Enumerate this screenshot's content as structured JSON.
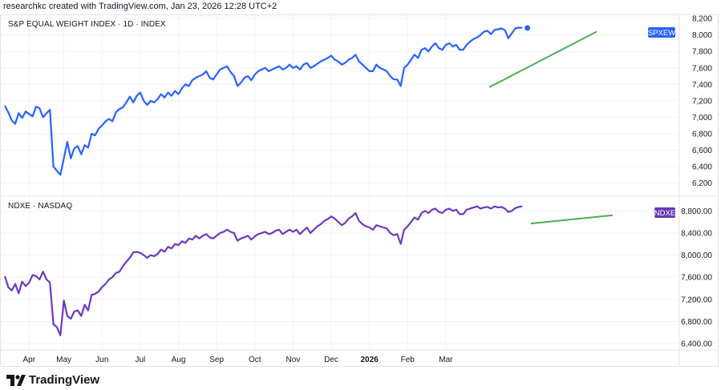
{
  "header": {
    "text": "researchkc created with TradingView.com, Jan 23, 2026 12:28 UTC+2"
  },
  "footer": {
    "brand": "TradingView"
  },
  "colors": {
    "spx_line": "#2962ff",
    "ndx_line": "#6b3ac2",
    "trend": "#4caf50",
    "spx_badge": "#2962ff",
    "ndx_badge": "#673ab7",
    "grid": "#f0f3fa",
    "axis_text": "#131722"
  },
  "x_axis": {
    "labels": [
      "Apr",
      "May",
      "Jun",
      "Jul",
      "Aug",
      "Sep",
      "Oct",
      "Nov",
      "Dec",
      "2026",
      "Feb",
      "Mar"
    ],
    "bold_label": "2026"
  },
  "chart_data": [
    {
      "type": "line",
      "title": "S&P EQUAL WEIGHT INDEX · 1D · INDEX",
      "badge": "SPXEW",
      "ylim": [
        6050,
        8250
      ],
      "yticks": [
        6200,
        6400,
        6600,
        6800,
        7000,
        7200,
        7400,
        7600,
        7800,
        8000,
        8200
      ],
      "ytick_labels": [
        "6,200",
        "6,400",
        "6,600",
        "6,800",
        "7,000",
        "7,200",
        "7,400",
        "7,600",
        "7,800",
        "8,000",
        "8,200"
      ],
      "last_value": 8085,
      "x": [
        0,
        2,
        4,
        6,
        8,
        10,
        12,
        14,
        16,
        18,
        20,
        22,
        24,
        26,
        28,
        30,
        32,
        34,
        36,
        38,
        40,
        42,
        44,
        46,
        48,
        50,
        52,
        54,
        56,
        58,
        60,
        62,
        64,
        66,
        68,
        70,
        72,
        74,
        76,
        78,
        80,
        82,
        84,
        86,
        88,
        90,
        92,
        94,
        96,
        98,
        100,
        102,
        104,
        106,
        108,
        110,
        112,
        114,
        116,
        118,
        120,
        122,
        124,
        126,
        128,
        130,
        132,
        134,
        136,
        138,
        140,
        142,
        144,
        146,
        148,
        150,
        152,
        154,
        156,
        158,
        160,
        162,
        164,
        166,
        168,
        170,
        172,
        174,
        176,
        178,
        180,
        182,
        184,
        186,
        188,
        190,
        192,
        194,
        196,
        198,
        200,
        202,
        204,
        206,
        208,
        210,
        212,
        214,
        216,
        218,
        220,
        222,
        224,
        226,
        228,
        230,
        232,
        234,
        236,
        238,
        240,
        242,
        244,
        246,
        248,
        250,
        252,
        254,
        256,
        258,
        260,
        262,
        264,
        266,
        268,
        270,
        272,
        274,
        276,
        278,
        280,
        282,
        284,
        286,
        288,
        290,
        292,
        294,
        296,
        298
      ],
      "values": [
        7140,
        7060,
        6960,
        6920,
        7050,
        6990,
        7070,
        7040,
        7010,
        7130,
        7110,
        7000,
        7050,
        7090,
        6400,
        6350,
        6300,
        6500,
        6700,
        6500,
        6620,
        6650,
        6550,
        6660,
        6630,
        6800,
        6780,
        6860,
        6900,
        6950,
        6980,
        6950,
        7060,
        7100,
        7120,
        7180,
        7250,
        7180,
        7260,
        7300,
        7200,
        7150,
        7200,
        7180,
        7220,
        7280,
        7240,
        7300,
        7260,
        7320,
        7280,
        7350,
        7400,
        7380,
        7450,
        7480,
        7500,
        7520,
        7560,
        7480,
        7460,
        7520,
        7580,
        7600,
        7620,
        7550,
        7500,
        7380,
        7420,
        7480,
        7500,
        7450,
        7520,
        7560,
        7580,
        7600,
        7560,
        7580,
        7600,
        7620,
        7580,
        7600,
        7640,
        7600,
        7620,
        7580,
        7640,
        7660,
        7600,
        7620,
        7650,
        7680,
        7700,
        7720,
        7750,
        7700,
        7680,
        7640,
        7660,
        7700,
        7720,
        7760,
        7680,
        7640,
        7600,
        7560,
        7560,
        7640,
        7600,
        7580,
        7560,
        7500,
        7460,
        7460,
        7380,
        7600,
        7640,
        7700,
        7760,
        7720,
        7820,
        7840,
        7800,
        7860,
        7900,
        7840,
        7820,
        7880,
        7900,
        7860,
        7880,
        7820,
        7820,
        7880,
        7920,
        7950,
        7970,
        8000,
        8040,
        8050,
        8010,
        8060,
        8070,
        8080,
        8060,
        7960,
        8020,
        8080,
        8090,
        8085
      ],
      "trend": {
        "x": [
          279,
          341
        ],
        "values": [
          7365,
          8042
        ]
      }
    },
    {
      "type": "line",
      "title": "NDXE · NASDAQ",
      "badge": "NDXE",
      "ylim": [
        6300,
        9050
      ],
      "yticks": [
        6400,
        6800,
        7200,
        7600,
        8000,
        8400,
        8800
      ],
      "ytick_labels": [
        "6,400.00",
        "6,800.00",
        "7,200.00",
        "7,600.00",
        "8,000.00",
        "8,400.00",
        "8,800.00"
      ],
      "last_value": 8880,
      "x": [
        0,
        2,
        4,
        6,
        8,
        10,
        12,
        14,
        16,
        18,
        20,
        22,
        24,
        26,
        28,
        30,
        32,
        34,
        36,
        38,
        40,
        42,
        44,
        46,
        48,
        50,
        52,
        54,
        56,
        58,
        60,
        62,
        64,
        66,
        68,
        70,
        72,
        74,
        76,
        78,
        80,
        82,
        84,
        86,
        88,
        90,
        92,
        94,
        96,
        98,
        100,
        102,
        104,
        106,
        108,
        110,
        112,
        114,
        116,
        118,
        120,
        122,
        124,
        126,
        128,
        130,
        132,
        134,
        136,
        138,
        140,
        142,
        144,
        146,
        148,
        150,
        152,
        154,
        156,
        158,
        160,
        162,
        164,
        166,
        168,
        170,
        172,
        174,
        176,
        178,
        180,
        182,
        184,
        186,
        188,
        190,
        192,
        194,
        196,
        198,
        200,
        202,
        204,
        206,
        208,
        210,
        212,
        214,
        216,
        218,
        220,
        222,
        224,
        226,
        228,
        230,
        232,
        234,
        236,
        238,
        240,
        242,
        244,
        246,
        248,
        250,
        252,
        254,
        256,
        258,
        260,
        262,
        264,
        266,
        268,
        270,
        272,
        274,
        276,
        278,
        280,
        282,
        284,
        286,
        288,
        290,
        292,
        294,
        296,
        298
      ],
      "values": [
        7620,
        7420,
        7360,
        7480,
        7310,
        7520,
        7440,
        7500,
        7640,
        7620,
        7560,
        7700,
        7560,
        7500,
        6750,
        6700,
        6550,
        7180,
        6900,
        6850,
        6980,
        7000,
        6900,
        7100,
        7000,
        7280,
        7300,
        7340,
        7420,
        7480,
        7560,
        7600,
        7680,
        7700,
        7800,
        7880,
        7950,
        8050,
        8060,
        8040,
        8000,
        7950,
        8000,
        7980,
        8020,
        8100,
        8060,
        8150,
        8120,
        8200,
        8180,
        8250,
        8220,
        8300,
        8280,
        8350,
        8300,
        8350,
        8380,
        8320,
        8300,
        8350,
        8400,
        8420,
        8460,
        8420,
        8400,
        8260,
        8300,
        8320,
        8350,
        8280,
        8340,
        8380,
        8400,
        8420,
        8380,
        8400,
        8440,
        8460,
        8380,
        8420,
        8460,
        8420,
        8460,
        8380,
        8440,
        8500,
        8400,
        8460,
        8520,
        8560,
        8620,
        8650,
        8700,
        8660,
        8600,
        8540,
        8580,
        8660,
        8700,
        8760,
        8620,
        8560,
        8520,
        8500,
        8460,
        8540,
        8520,
        8500,
        8480,
        8400,
        8360,
        8380,
        8200,
        8460,
        8520,
        8600,
        8680,
        8640,
        8760,
        8800,
        8760,
        8820,
        8840,
        8780,
        8760,
        8820,
        8840,
        8800,
        8820,
        8740,
        8740,
        8820,
        8840,
        8860,
        8880,
        8840,
        8860,
        8870,
        8840,
        8880,
        8860,
        8870,
        8840,
        8780,
        8800,
        8850,
        8870,
        8880
      ],
      "trend": {
        "x": [
          303,
          350
        ],
        "values": [
          8570,
          8720
        ]
      }
    }
  ]
}
